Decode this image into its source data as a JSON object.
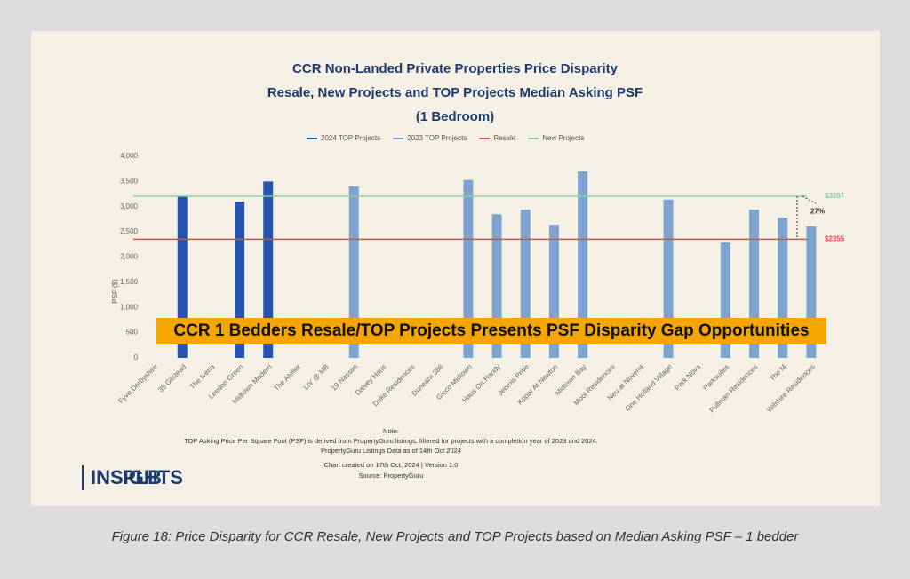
{
  "chart_data": {
    "type": "bar",
    "title": [
      "CCR Non-Landed Private Properties Price Disparity",
      "Resale, New Projects and TOP Projects Median Asking PSF",
      "(1 Bedroom)"
    ],
    "y_label": "PSF ($)",
    "categories": [
      "Fyve Derbyshire",
      "35 Gilstead",
      "The Iveria",
      "Leedon Green",
      "Midtown Modern",
      "The Atelier",
      "LIV @ MB",
      "19 Nassim",
      "Dalvey Haus",
      "Duke Residences",
      "Dunearn 386",
      "Gicco Midtown",
      "Haus On Handy",
      "Jervois Prive",
      "Kopar At Newton",
      "Midtown Bay",
      "Mooi Residences",
      "Neu at Novena",
      "One Holland Village",
      "Park Nova",
      "Parksuites",
      "Pullman Residences",
      "The M",
      "Wilshire Residences"
    ],
    "series": [
      {
        "name": "2024 TOP Projects",
        "color": "#2553b0",
        "values": [
          null,
          3200,
          null,
          3100,
          3500,
          null,
          null,
          null,
          null,
          null,
          null,
          null,
          null,
          null,
          null,
          null,
          null,
          null,
          null,
          null,
          null,
          null,
          null,
          null
        ]
      },
      {
        "name": "2023 TOP Projects",
        "color": "#7ea3d0",
        "values": [
          null,
          null,
          null,
          null,
          null,
          null,
          null,
          3400,
          null,
          null,
          null,
          3530,
          2850,
          2940,
          2640,
          3700,
          null,
          null,
          3140,
          null,
          2290,
          2940,
          2780,
          2610
        ]
      }
    ],
    "reference_lines": [
      {
        "name": "Resale",
        "color": "#e8474c",
        "value": 2355,
        "value_label": "$2355"
      },
      {
        "name": "New Projects",
        "color": "#8fcaa0",
        "value": 3207,
        "value_label": "$3207"
      }
    ],
    "annotation": "27%",
    "ylim": [
      0,
      4000
    ],
    "yticks": [
      0,
      500,
      {
        "value": 1000,
        "label": "1,000"
      },
      {
        "value": 1500,
        "label": "1,500"
      },
      {
        "value": 2000,
        "label": "2,000"
      },
      {
        "value": 2500,
        "label": "2,500"
      },
      {
        "value": 3000,
        "label": "3,000"
      },
      {
        "value": 3500,
        "label": "3,500"
      },
      {
        "value": 4000,
        "label": "4,000"
      }
    ],
    "banner": "CCR 1 Bedders Resale/TOP Projects Presents PSF Disparity Gap Opportunities",
    "notes": [
      "Note:",
      "TOP Asking Price Per Square Foot (PSF) is derived from PropertyGuru listings, filtered for projects with a completion year of 2023 and 2024.",
      "PropertyGuru Listings Data as of 14th Oct 2024",
      "Chart created on 17th Oct, 2024 | Version 1.0",
      "Source: PropertyGuru"
    ]
  },
  "logo": {
    "left": "PLB",
    "right": "INSIGHTS"
  },
  "caption": "Figure 18: Price Disparity for CCR Resale, New Projects and TOP Projects based on Median Asking PSF – 1 bedder"
}
